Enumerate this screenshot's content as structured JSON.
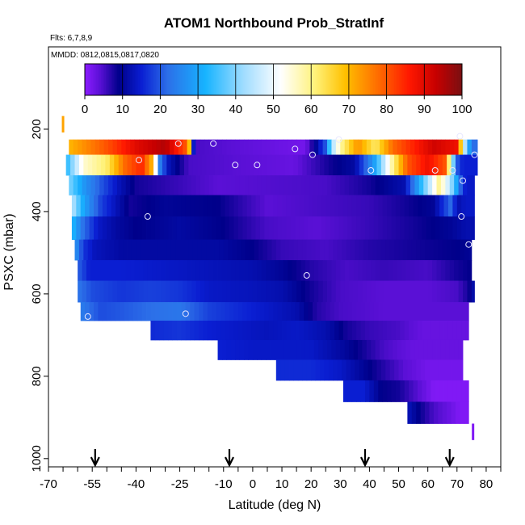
{
  "chart_data": {
    "type": "heatmap",
    "title": "ATOM1 Northbound Prob_StratInf",
    "flights_label": "Flts: 6,7,8,9",
    "dates_label": "MMDD: 0812,0815,0817,0820",
    "xlabel": "Latitude (deg N)",
    "ylabel": "PSXC (mbar)",
    "xlim": [
      -70,
      85
    ],
    "ylim": [
      1020,
      0
    ],
    "x_ticks": [
      -70,
      -55,
      -40,
      -25,
      -10,
      0,
      10,
      20,
      30,
      40,
      50,
      60,
      70,
      80
    ],
    "x_minor_step": 5,
    "y_ticks": [
      200,
      400,
      600,
      800,
      1000
    ],
    "colorbar": {
      "range": [
        0,
        100
      ],
      "ticks": [
        0,
        10,
        20,
        30,
        40,
        50,
        60,
        70,
        80,
        90,
        100
      ]
    },
    "color_stops": [
      {
        "v": 0,
        "c": "#8c1cff"
      },
      {
        "v": 4,
        "c": "#5a10d6"
      },
      {
        "v": 9,
        "c": "#00008a"
      },
      {
        "v": 15,
        "c": "#0a1ed2"
      },
      {
        "v": 22,
        "c": "#2c6fe8"
      },
      {
        "v": 32,
        "c": "#17b4ff"
      },
      {
        "v": 42,
        "c": "#9fdcff"
      },
      {
        "v": 52,
        "c": "#ffffff"
      },
      {
        "v": 61,
        "c": "#fff27a"
      },
      {
        "v": 69,
        "c": "#ffc000"
      },
      {
        "v": 78,
        "c": "#ff6a00"
      },
      {
        "v": 86,
        "c": "#ff1800"
      },
      {
        "v": 93,
        "c": "#c80000"
      },
      {
        "v": 100,
        "c": "#7a0f12"
      }
    ],
    "rows": [
      {
        "p_top": 225,
        "p_bot": 262,
        "segments": [
          [
            -63,
            70
          ],
          [
            -48,
            82
          ],
          [
            -40,
            90
          ],
          [
            -30,
            95
          ],
          [
            -22,
            78
          ],
          [
            -20,
            5
          ],
          [
            18,
            2
          ],
          [
            22,
            11
          ],
          [
            25,
            20
          ],
          [
            27,
            42
          ],
          [
            30,
            58
          ],
          [
            36,
            74
          ],
          [
            42,
            62
          ],
          [
            48,
            78
          ],
          [
            56,
            86
          ],
          [
            62,
            92
          ],
          [
            70,
            88
          ],
          [
            73,
            40
          ],
          [
            75,
            22
          ],
          [
            77,
            22
          ]
        ]
      },
      {
        "p_top": 262,
        "p_bot": 312,
        "segments": [
          [
            -64,
            32
          ],
          [
            -58,
            55
          ],
          [
            -50,
            62
          ],
          [
            -44,
            78
          ],
          [
            -38,
            85
          ],
          [
            -34,
            68
          ],
          [
            -32,
            25
          ],
          [
            -29,
            13
          ],
          [
            -22,
            5
          ],
          [
            14,
            3
          ],
          [
            26,
            8
          ],
          [
            35,
            11
          ],
          [
            42,
            30
          ],
          [
            47,
            55
          ],
          [
            53,
            80
          ],
          [
            60,
            88
          ],
          [
            66,
            80
          ],
          [
            70,
            20
          ],
          [
            72,
            15
          ],
          [
            75,
            15
          ],
          [
            77,
            15
          ]
        ]
      },
      {
        "p_top": 312,
        "p_bot": 360,
        "segments": [
          [
            -63,
            40
          ],
          [
            -58,
            28
          ],
          [
            -52,
            20
          ],
          [
            -46,
            13
          ],
          [
            -40,
            8
          ],
          [
            -12,
            4
          ],
          [
            25,
            5
          ],
          [
            40,
            8
          ],
          [
            52,
            12
          ],
          [
            57,
            30
          ],
          [
            64,
            60
          ],
          [
            68,
            42
          ],
          [
            71,
            22
          ],
          [
            73,
            14
          ],
          [
            76,
            14
          ]
        ]
      },
      {
        "p_top": 360,
        "p_bot": 412,
        "segments": [
          [
            -62,
            45
          ],
          [
            -58,
            30
          ],
          [
            -52,
            18
          ],
          [
            -46,
            12
          ],
          [
            -42,
            8
          ],
          [
            -30,
            10
          ],
          [
            -12,
            9
          ],
          [
            5,
            4
          ],
          [
            22,
            5
          ],
          [
            40,
            6
          ],
          [
            52,
            8
          ],
          [
            62,
            10
          ],
          [
            68,
            22
          ],
          [
            70,
            12
          ],
          [
            73,
            14
          ],
          [
            76,
            14
          ]
        ]
      },
      {
        "p_top": 412,
        "p_bot": 468,
        "segments": [
          [
            -62,
            33
          ],
          [
            -58,
            22
          ],
          [
            -53,
            14
          ],
          [
            -47,
            11
          ],
          [
            -40,
            9
          ],
          [
            -25,
            11
          ],
          [
            -10,
            9
          ],
          [
            5,
            5
          ],
          [
            22,
            4
          ],
          [
            40,
            6
          ],
          [
            55,
            8
          ],
          [
            68,
            10
          ],
          [
            73,
            12
          ],
          [
            76,
            12
          ]
        ]
      },
      {
        "p_top": 468,
        "p_bot": 518,
        "segments": [
          [
            -61,
            28
          ],
          [
            -58,
            17
          ],
          [
            -54,
            13
          ],
          [
            -45,
            11
          ],
          [
            -30,
            11
          ],
          [
            -12,
            11
          ],
          [
            0,
            9
          ],
          [
            10,
            6
          ],
          [
            25,
            5
          ],
          [
            40,
            7
          ],
          [
            55,
            8
          ],
          [
            70,
            9
          ],
          [
            75,
            10
          ]
        ]
      },
      {
        "p_top": 518,
        "p_bot": 568,
        "segments": [
          [
            -60,
            21
          ],
          [
            -56,
            15
          ],
          [
            -45,
            15
          ],
          [
            -30,
            14
          ],
          [
            -15,
            13
          ],
          [
            0,
            12
          ],
          [
            10,
            10
          ],
          [
            20,
            7
          ],
          [
            32,
            5
          ],
          [
            45,
            6
          ],
          [
            60,
            5
          ],
          [
            70,
            8
          ],
          [
            75,
            9
          ]
        ]
      },
      {
        "p_top": 568,
        "p_bot": 620,
        "segments": [
          [
            -60,
            23
          ],
          [
            -55,
            19
          ],
          [
            -45,
            17
          ],
          [
            -35,
            18
          ],
          [
            -25,
            17
          ],
          [
            -15,
            14
          ],
          [
            0,
            13
          ],
          [
            10,
            12
          ],
          [
            20,
            8
          ],
          [
            30,
            5
          ],
          [
            45,
            4
          ],
          [
            60,
            4
          ],
          [
            70,
            5
          ],
          [
            74,
            8
          ],
          [
            76,
            12
          ]
        ]
      },
      {
        "p_top": 620,
        "p_bot": 665,
        "segments": [
          [
            -59,
            24
          ],
          [
            -52,
            19
          ],
          [
            -45,
            20
          ],
          [
            -35,
            22
          ],
          [
            -25,
            23
          ],
          [
            -15,
            18
          ],
          [
            -5,
            16
          ],
          [
            5,
            14
          ],
          [
            15,
            12
          ],
          [
            22,
            7
          ],
          [
            30,
            5
          ],
          [
            45,
            4
          ],
          [
            60,
            4
          ],
          [
            70,
            4
          ],
          [
            74,
            4
          ]
        ]
      },
      {
        "p_top": 665,
        "p_bot": 712,
        "segments": [
          [
            -35,
            16
          ],
          [
            -25,
            17
          ],
          [
            -15,
            15
          ],
          [
            -5,
            14
          ],
          [
            5,
            13
          ],
          [
            15,
            14
          ],
          [
            25,
            12
          ],
          [
            32,
            8
          ],
          [
            40,
            6
          ],
          [
            50,
            5
          ],
          [
            58,
            3
          ],
          [
            66,
            3
          ],
          [
            74,
            3
          ]
        ]
      },
      {
        "p_top": 712,
        "p_bot": 760,
        "segments": [
          [
            -12,
            15
          ],
          [
            0,
            14
          ],
          [
            10,
            14
          ],
          [
            20,
            14
          ],
          [
            30,
            11
          ],
          [
            38,
            8
          ],
          [
            45,
            5
          ],
          [
            55,
            3
          ],
          [
            64,
            3
          ],
          [
            72,
            3
          ]
        ]
      },
      {
        "p_top": 760,
        "p_bot": 810,
        "segments": [
          [
            8,
            16
          ],
          [
            20,
            16
          ],
          [
            30,
            14
          ],
          [
            38,
            10
          ],
          [
            45,
            7
          ],
          [
            52,
            4
          ],
          [
            60,
            2
          ],
          [
            68,
            2
          ],
          [
            72,
            2
          ]
        ]
      },
      {
        "p_top": 810,
        "p_bot": 862,
        "segments": [
          [
            31,
            15
          ],
          [
            38,
            15
          ],
          [
            44,
            9
          ],
          [
            50,
            8
          ],
          [
            57,
            4
          ],
          [
            62,
            1
          ],
          [
            70,
            1
          ],
          [
            74,
            1
          ]
        ]
      },
      {
        "p_top": 862,
        "p_bot": 915,
        "segments": [
          [
            53,
            13
          ],
          [
            58,
            8
          ],
          [
            62,
            5
          ],
          [
            67,
            3
          ],
          [
            71,
            1
          ],
          [
            74,
            1
          ]
        ]
      }
    ],
    "edge_marks": [
      {
        "lat": -65,
        "p_top": 168,
        "p_bot": 208,
        "value": 72
      },
      {
        "lat": 75.5,
        "p_top": 915,
        "p_bot": 955,
        "value": 1
      }
    ],
    "circles": [
      {
        "lat": -25.5,
        "p": 235
      },
      {
        "lat": -13.5,
        "p": 235
      },
      {
        "lat": 14.5,
        "p": 248
      },
      {
        "lat": 29.5,
        "p": 225
      },
      {
        "lat": 20.5,
        "p": 262
      },
      {
        "lat": 71,
        "p": 217
      },
      {
        "lat": 76,
        "p": 262
      },
      {
        "lat": -39,
        "p": 275
      },
      {
        "lat": -6,
        "p": 287
      },
      {
        "lat": 1.5,
        "p": 287
      },
      {
        "lat": 40.5,
        "p": 300
      },
      {
        "lat": 62.5,
        "p": 300
      },
      {
        "lat": 68.5,
        "p": 300
      },
      {
        "lat": 72,
        "p": 325
      },
      {
        "lat": -36,
        "p": 412
      },
      {
        "lat": 71.5,
        "p": 412
      },
      {
        "lat": 74,
        "p": 480
      },
      {
        "lat": 18.5,
        "p": 555
      },
      {
        "lat": -23,
        "p": 648
      },
      {
        "lat": -56.5,
        "p": 655
      }
    ],
    "arrows": [
      -54,
      -8,
      38.5,
      67.5
    ]
  }
}
